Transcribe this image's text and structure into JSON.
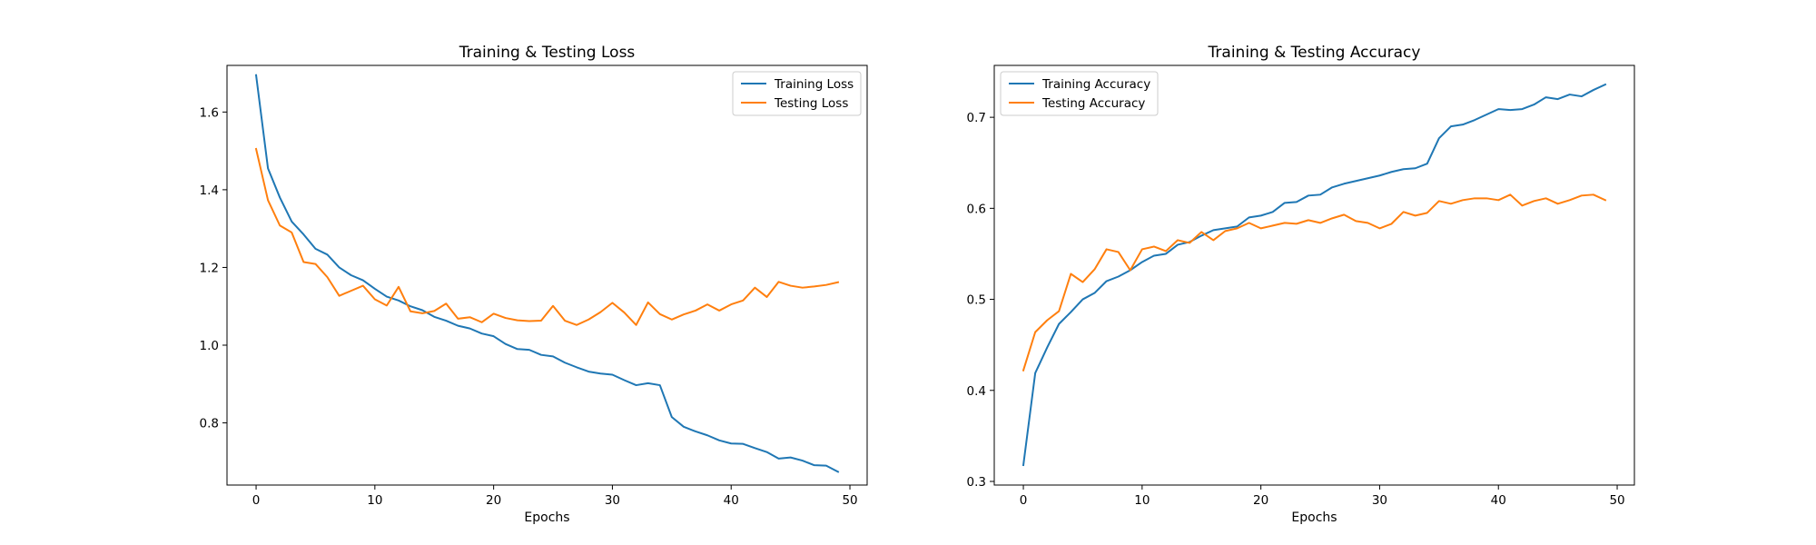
{
  "chart_data": [
    {
      "type": "line",
      "title": "Training & Testing Loss",
      "xlabel": "Epochs",
      "ylabel": "",
      "xlim": [
        -2.45,
        51.45
      ],
      "ylim": [
        0.64,
        1.72
      ],
      "xticks": [
        0,
        10,
        20,
        30,
        40,
        50
      ],
      "yticks": [
        0.8,
        1.0,
        1.2,
        1.4,
        1.6
      ],
      "ytick_labels": [
        "0.8",
        "1.0",
        "1.2",
        "1.4",
        "1.6"
      ],
      "legend_position": "upper right",
      "x": [
        0,
        1,
        2,
        3,
        4,
        5,
        6,
        7,
        8,
        9,
        10,
        11,
        12,
        13,
        14,
        15,
        16,
        17,
        18,
        19,
        20,
        21,
        22,
        23,
        24,
        25,
        26,
        27,
        28,
        29,
        30,
        31,
        32,
        33,
        34,
        35,
        36,
        37,
        38,
        39,
        40,
        41,
        42,
        43,
        44,
        45,
        46,
        47,
        48,
        49
      ],
      "series": [
        {
          "name": "Training Loss",
          "color": "#1f77b4",
          "values": [
            1.695,
            1.455,
            1.38,
            1.318,
            1.285,
            1.248,
            1.233,
            1.2,
            1.18,
            1.167,
            1.145,
            1.125,
            1.115,
            1.1,
            1.09,
            1.073,
            1.063,
            1.05,
            1.043,
            1.03,
            1.023,
            1.003,
            0.99,
            0.988,
            0.975,
            0.971,
            0.955,
            0.943,
            0.932,
            0.927,
            0.924,
            0.91,
            0.897,
            0.902,
            0.897,
            0.815,
            0.79,
            0.778,
            0.768,
            0.755,
            0.747,
            0.746,
            0.735,
            0.725,
            0.708,
            0.711,
            0.703,
            0.691,
            0.69,
            0.674
          ]
        },
        {
          "name": "Testing Loss",
          "color": "#ff7f0e",
          "values": [
            1.505,
            1.373,
            1.308,
            1.29,
            1.214,
            1.209,
            1.175,
            1.127,
            1.14,
            1.153,
            1.118,
            1.102,
            1.15,
            1.087,
            1.082,
            1.088,
            1.107,
            1.068,
            1.072,
            1.059,
            1.081,
            1.07,
            1.064,
            1.062,
            1.063,
            1.101,
            1.063,
            1.052,
            1.066,
            1.085,
            1.109,
            1.084,
            1.052,
            1.11,
            1.08,
            1.066,
            1.079,
            1.089,
            1.105,
            1.089,
            1.105,
            1.115,
            1.148,
            1.124,
            1.163,
            1.153,
            1.148,
            1.151,
            1.155,
            1.162
          ]
        }
      ]
    },
    {
      "type": "line",
      "title": "Training & Testing Accuracy",
      "xlabel": "Epochs",
      "ylabel": "",
      "xlim": [
        -2.45,
        51.45
      ],
      "ylim": [
        0.296,
        0.757
      ],
      "xticks": [
        0,
        10,
        20,
        30,
        40,
        50
      ],
      "yticks": [
        0.3,
        0.4,
        0.5,
        0.6,
        0.7
      ],
      "ytick_labels": [
        "0.3",
        "0.4",
        "0.5",
        "0.6",
        "0.7"
      ],
      "legend_position": "upper left",
      "x": [
        0,
        1,
        2,
        3,
        4,
        5,
        6,
        7,
        8,
        9,
        10,
        11,
        12,
        13,
        14,
        15,
        16,
        17,
        18,
        19,
        20,
        21,
        22,
        23,
        24,
        25,
        26,
        27,
        28,
        29,
        30,
        31,
        32,
        33,
        34,
        35,
        36,
        37,
        38,
        39,
        40,
        41,
        42,
        43,
        44,
        45,
        46,
        47,
        48,
        49
      ],
      "series": [
        {
          "name": "Training Accuracy",
          "color": "#1f77b4",
          "values": [
            0.318,
            0.419,
            0.447,
            0.473,
            0.486,
            0.5,
            0.507,
            0.52,
            0.525,
            0.532,
            0.541,
            0.548,
            0.55,
            0.56,
            0.563,
            0.57,
            0.576,
            0.578,
            0.58,
            0.59,
            0.592,
            0.596,
            0.606,
            0.607,
            0.614,
            0.615,
            0.623,
            0.627,
            0.63,
            0.633,
            0.636,
            0.64,
            0.643,
            0.644,
            0.649,
            0.677,
            0.69,
            0.692,
            0.697,
            0.703,
            0.709,
            0.708,
            0.709,
            0.714,
            0.722,
            0.72,
            0.725,
            0.723,
            0.73,
            0.736
          ]
        },
        {
          "name": "Testing Accuracy",
          "color": "#ff7f0e",
          "values": [
            0.422,
            0.464,
            0.477,
            0.487,
            0.528,
            0.519,
            0.533,
            0.555,
            0.552,
            0.532,
            0.555,
            0.558,
            0.553,
            0.565,
            0.562,
            0.574,
            0.565,
            0.575,
            0.578,
            0.584,
            0.578,
            0.581,
            0.584,
            0.583,
            0.587,
            0.584,
            0.589,
            0.593,
            0.586,
            0.584,
            0.578,
            0.583,
            0.596,
            0.592,
            0.595,
            0.608,
            0.605,
            0.609,
            0.611,
            0.611,
            0.609,
            0.615,
            0.603,
            0.608,
            0.611,
            0.605,
            0.609,
            0.614,
            0.615,
            0.609
          ]
        }
      ]
    }
  ]
}
